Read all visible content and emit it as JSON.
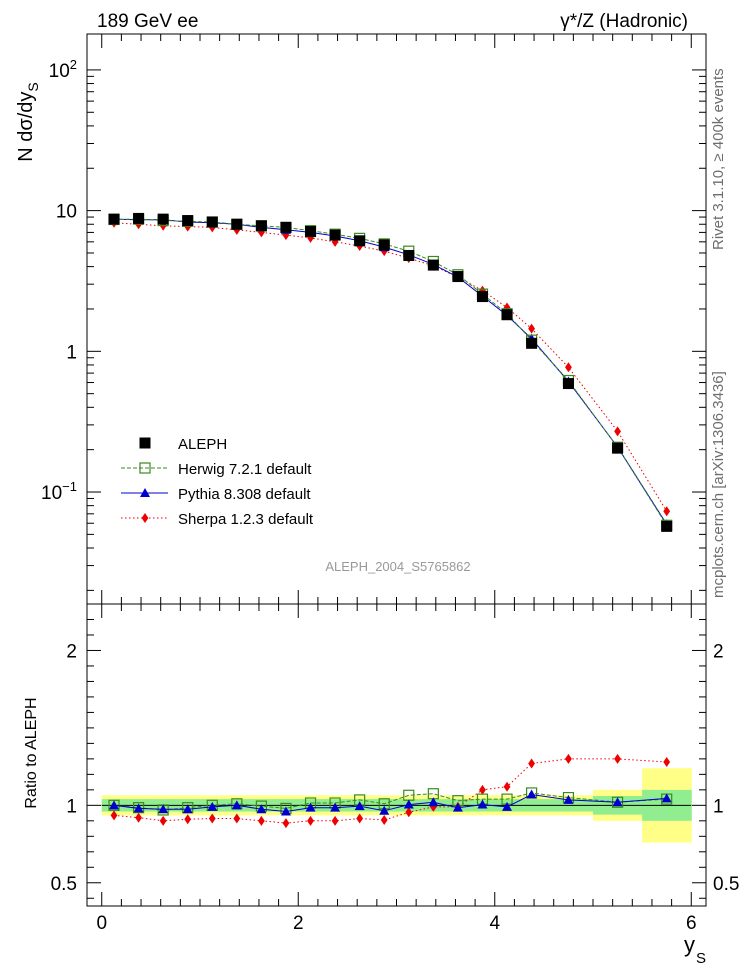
{
  "header": {
    "left": "189 GeV ee",
    "right": "γ*/Z (Hadronic)"
  },
  "side_labels": {
    "rivet": "Rivet 3.1.10, ≥ 400k events",
    "mcplots": "mcplots.cern.ch [arXiv:1306.3436]"
  },
  "colors": {
    "aleph": "#000000",
    "herwig": "#3a8a1e",
    "pythia": "#0000cc",
    "sherpa": "#ee0000",
    "band_inner": "#90ee90",
    "band_outer": "#ffff88"
  },
  "chart_data": [
    {
      "type": "scatter",
      "panel": "main",
      "watermark": "ALEPH_2004_S5765862",
      "ylabel": "N dσ/dy_S",
      "yscale": "log",
      "xlim": [
        -0.15,
        6.15
      ],
      "ylim": [
        0.016,
        180
      ],
      "y_ticks": [
        "10^-1",
        "1",
        "10",
        "10^2"
      ],
      "x": [
        0.125,
        0.375,
        0.625,
        0.875,
        1.125,
        1.375,
        1.625,
        1.875,
        2.125,
        2.375,
        2.625,
        2.875,
        3.125,
        3.375,
        3.625,
        3.875,
        4.125,
        4.375,
        4.75,
        5.25,
        5.75
      ],
      "series": [
        {
          "name": "ALEPH",
          "marker": "filled-square",
          "values": [
            8.7,
            8.8,
            8.7,
            8.5,
            8.3,
            8.0,
            7.8,
            7.6,
            7.1,
            6.7,
            6.1,
            5.7,
            4.8,
            4.1,
            3.4,
            2.45,
            1.82,
            1.14,
            0.59,
            0.205,
            0.057
          ]
        },
        {
          "name": "Herwig 7.2.1 default",
          "marker": "open-square",
          "values": [
            8.65,
            8.7,
            8.5,
            8.4,
            8.3,
            8.0,
            7.8,
            7.6,
            7.2,
            6.8,
            6.35,
            5.8,
            5.15,
            4.35,
            3.5,
            2.55,
            1.85,
            1.2,
            0.62,
            0.208,
            0.058
          ]
        },
        {
          "name": "Pythia 8.308 default",
          "marker": "filled-triangle",
          "values": [
            8.7,
            8.6,
            8.6,
            8.3,
            8.2,
            8.0,
            7.6,
            7.3,
            7.0,
            6.6,
            6.1,
            5.5,
            4.85,
            4.15,
            3.37,
            2.47,
            1.8,
            1.23,
            0.61,
            0.209,
            0.059
          ]
        },
        {
          "name": "Sherpa 1.2.3 default",
          "marker": "filled-diamond",
          "values": [
            8.2,
            8.0,
            7.8,
            7.7,
            7.6,
            7.3,
            7.0,
            6.7,
            6.4,
            6.0,
            5.6,
            5.15,
            4.6,
            4.05,
            3.37,
            2.7,
            2.05,
            1.45,
            0.77,
            0.27,
            0.073
          ]
        }
      ],
      "legend_placement": "lower-left"
    },
    {
      "type": "scatter",
      "panel": "ratio",
      "xlabel": "y_S",
      "ylabel": "Ratio to ALEPH",
      "xlim": [
        -0.15,
        6.15
      ],
      "ylim": [
        0.35,
        2.3
      ],
      "x_ticks": [
        "0",
        "2",
        "4",
        "6"
      ],
      "y_ticks": [
        "0.5",
        "1",
        "2"
      ],
      "x": [
        0.125,
        0.375,
        0.625,
        0.875,
        1.125,
        1.375,
        1.625,
        1.875,
        2.125,
        2.375,
        2.625,
        2.875,
        3.125,
        3.375,
        3.625,
        3.875,
        4.125,
        4.375,
        4.75,
        5.25,
        5.75
      ],
      "bands": {
        "edges": [
          0,
          0.25,
          0.5,
          0.75,
          1.0,
          1.25,
          1.5,
          1.75,
          2.0,
          2.25,
          2.5,
          2.75,
          3.0,
          3.25,
          3.5,
          3.75,
          4.0,
          4.25,
          4.5,
          5.0,
          5.5,
          6.0
        ],
        "inner_halfwidth": [
          0.04,
          0.04,
          0.04,
          0.04,
          0.04,
          0.04,
          0.04,
          0.04,
          0.04,
          0.04,
          0.04,
          0.04,
          0.04,
          0.04,
          0.04,
          0.04,
          0.04,
          0.04,
          0.04,
          0.06,
          0.1
        ],
        "outer_halfwidth": [
          0.065,
          0.065,
          0.065,
          0.065,
          0.065,
          0.065,
          0.065,
          0.065,
          0.065,
          0.065,
          0.065,
          0.065,
          0.065,
          0.065,
          0.065,
          0.065,
          0.065,
          0.065,
          0.065,
          0.1,
          0.24
        ]
      },
      "series": [
        {
          "name": "Herwig 7.2.1 default",
          "values": [
            1.0,
            0.985,
            0.97,
            0.985,
            1.0,
            1.01,
            0.995,
            0.98,
            1.015,
            1.015,
            1.035,
            1.01,
            1.065,
            1.075,
            1.03,
            1.04,
            1.04,
            1.08,
            1.05,
            1.02,
            1.04
          ]
        },
        {
          "name": "Pythia 8.308 default",
          "values": [
            1.0,
            0.98,
            0.975,
            0.975,
            0.99,
            1.0,
            0.975,
            0.96,
            0.985,
            0.985,
            0.995,
            0.965,
            1.005,
            1.02,
            0.985,
            1.005,
            0.99,
            1.07,
            1.035,
            1.02,
            1.045
          ]
        },
        {
          "name": "Sherpa 1.2.3 default",
          "values": [
            0.935,
            0.92,
            0.9,
            0.91,
            0.915,
            0.915,
            0.9,
            0.885,
            0.9,
            0.9,
            0.915,
            0.905,
            0.955,
            0.99,
            0.99,
            1.1,
            1.12,
            1.27,
            1.3,
            1.3,
            1.28
          ]
        }
      ]
    }
  ]
}
